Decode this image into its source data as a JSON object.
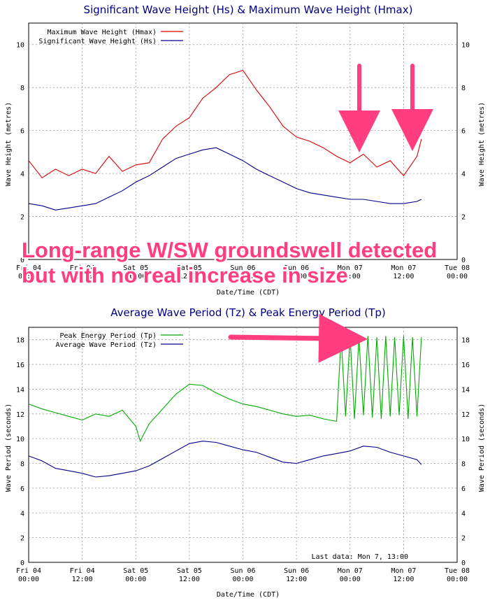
{
  "annotation": {
    "line1": "Long-range W/SW groundswell detected",
    "line2": "but with no real increase in size",
    "color": "#ff3d7f"
  },
  "colors": {
    "hmax": "#dd0000",
    "hs": "#000088",
    "tp": "#00aa00",
    "tz": "#000088",
    "grid": "#9a9a9a"
  },
  "chart_data": [
    {
      "type": "line",
      "title": "Significant Wave Height (Hs) & Maximum Wave Height (Hmax)",
      "xlabel": "Date/Time (CDT)",
      "ylabel": "Wave Height (metres)",
      "ylim": [
        0,
        11
      ],
      "yticks": [
        0,
        2,
        4,
        6,
        8,
        10
      ],
      "grid": true,
      "legend_position": "top-left",
      "x_ticks": [
        {
          "l1": "Fri 04",
          "l2": "00:00"
        },
        {
          "l1": "Fri 04",
          "l2": "12:00"
        },
        {
          "l1": "Sat 05",
          "l2": "00:00"
        },
        {
          "l1": "Sat 05",
          "l2": "12:00"
        },
        {
          "l1": "Sun 06",
          "l2": "00:00"
        },
        {
          "l1": "Sun 06",
          "l2": "12:00"
        },
        {
          "l1": "Mon 07",
          "l2": "00:00"
        },
        {
          "l1": "Mon 07",
          "l2": "12:00"
        },
        {
          "l1": "Tue 08",
          "l2": "00:00"
        }
      ],
      "hours_shown_as": "hours since Fri 04 00:00",
      "series": [
        {
          "name": "Maximum Wave Height (Hmax)",
          "x": [
            0,
            3,
            6,
            9,
            12,
            15,
            18,
            21,
            24,
            27,
            30,
            33,
            36,
            39,
            42,
            45,
            48,
            51,
            54,
            57,
            60,
            63,
            66,
            69,
            72,
            75,
            78,
            81,
            84,
            87,
            88
          ],
          "y": [
            4.6,
            3.8,
            4.2,
            3.9,
            4.2,
            4.0,
            4.8,
            4.1,
            4.4,
            4.5,
            5.6,
            6.2,
            6.6,
            7.5,
            8.0,
            8.6,
            8.8,
            7.9,
            7.1,
            6.2,
            5.7,
            5.5,
            5.2,
            4.8,
            4.5,
            4.9,
            4.3,
            4.6,
            3.9,
            4.8,
            5.6
          ]
        },
        {
          "name": "Significant Wave Height (Hs)",
          "x": [
            0,
            3,
            6,
            9,
            12,
            15,
            18,
            21,
            24,
            27,
            30,
            33,
            36,
            39,
            42,
            45,
            48,
            51,
            54,
            57,
            60,
            63,
            66,
            69,
            72,
            75,
            78,
            81,
            84,
            87,
            88
          ],
          "y": [
            2.6,
            2.5,
            2.3,
            2.4,
            2.5,
            2.6,
            2.9,
            3.2,
            3.6,
            3.9,
            4.3,
            4.7,
            4.9,
            5.1,
            5.2,
            4.9,
            4.6,
            4.2,
            3.9,
            3.6,
            3.3,
            3.1,
            3.0,
            2.9,
            2.8,
            2.8,
            2.7,
            2.6,
            2.6,
            2.7,
            2.8
          ]
        }
      ]
    },
    {
      "type": "line",
      "title": "Average Wave Period (Tz) & Peak Energy Period (Tp)",
      "xlabel": "Date/Time (CDT)",
      "ylabel": "Wave Period (seconds)",
      "ylim": [
        0,
        19
      ],
      "yticks": [
        0,
        2,
        4,
        6,
        8,
        10,
        12,
        14,
        16,
        18
      ],
      "grid": true,
      "legend_position": "top-left",
      "note": "Last data: Mon  7, 13:00",
      "x_ticks": [
        {
          "l1": "Fri 04",
          "l2": "00:00"
        },
        {
          "l1": "Fri 04",
          "l2": "12:00"
        },
        {
          "l1": "Sat 05",
          "l2": "00:00"
        },
        {
          "l1": "Sat 05",
          "l2": "12:00"
        },
        {
          "l1": "Sun 06",
          "l2": "00:00"
        },
        {
          "l1": "Sun 06",
          "l2": "12:00"
        },
        {
          "l1": "Mon 07",
          "l2": "00:00"
        },
        {
          "l1": "Mon 07",
          "l2": "12:00"
        },
        {
          "l1": "Tue 08",
          "l2": "00:00"
        }
      ],
      "series": [
        {
          "name": "Peak Energy Period (Tp)",
          "x": [
            0,
            3,
            6,
            9,
            12,
            15,
            18,
            21,
            24,
            25,
            27,
            30,
            33,
            36,
            39,
            42,
            45,
            48,
            51,
            54,
            57,
            60,
            63,
            66,
            69,
            70,
            71,
            72,
            73,
            74,
            75,
            76,
            77,
            78,
            79,
            80,
            81,
            82,
            83,
            84,
            85,
            86,
            87,
            88
          ],
          "y": [
            12.8,
            12.4,
            12.1,
            11.8,
            11.5,
            12.0,
            11.8,
            12.3,
            11.0,
            9.8,
            11.2,
            12.4,
            13.6,
            14.4,
            14.3,
            13.7,
            13.2,
            12.8,
            12.6,
            12.3,
            12.0,
            11.8,
            11.9,
            11.6,
            11.4,
            18.2,
            11.8,
            18.3,
            11.6,
            18.2,
            11.9,
            18.3,
            11.7,
            18.2,
            11.6,
            18.3,
            11.8,
            18.2,
            11.9,
            18.3,
            11.6,
            18.2,
            11.8,
            18.2
          ]
        },
        {
          "name": "Average Wave Period (Tz)",
          "x": [
            0,
            3,
            6,
            9,
            12,
            15,
            18,
            21,
            24,
            27,
            30,
            33,
            36,
            39,
            42,
            45,
            48,
            51,
            54,
            57,
            60,
            63,
            66,
            69,
            72,
            75,
            78,
            81,
            84,
            87,
            88
          ],
          "y": [
            8.6,
            8.2,
            7.6,
            7.4,
            7.2,
            6.9,
            7.0,
            7.2,
            7.4,
            7.8,
            8.4,
            9.0,
            9.6,
            9.8,
            9.7,
            9.4,
            9.1,
            8.9,
            8.5,
            8.1,
            8.0,
            8.3,
            8.6,
            8.8,
            9.0,
            9.4,
            9.3,
            8.9,
            8.6,
            8.3,
            7.9
          ]
        }
      ]
    }
  ]
}
